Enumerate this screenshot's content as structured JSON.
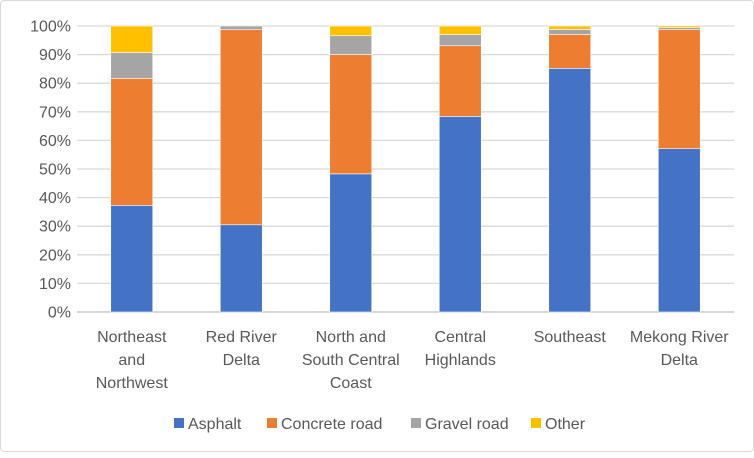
{
  "chart_data": {
    "type": "bar",
    "stacked": "percent",
    "title": "",
    "xlabel": "",
    "ylabel": "",
    "ylim": [
      0,
      100
    ],
    "yticks": [
      "0%",
      "10%",
      "20%",
      "30%",
      "40%",
      "50%",
      "60%",
      "70%",
      "80%",
      "90%",
      "100%"
    ],
    "categories": [
      [
        "Northeast",
        "and",
        "Northwest"
      ],
      [
        "Red River",
        "Delta"
      ],
      [
        "North and",
        "South Central",
        "Coast"
      ],
      [
        "Central",
        "Highlands"
      ],
      [
        "Southeast"
      ],
      [
        "Mekong River",
        "Delta"
      ]
    ],
    "series": [
      {
        "name": "Asphalt",
        "color": "#4472c4",
        "values": [
          37.3,
          30.5,
          48.3,
          68.4,
          85.2,
          57.1
        ]
      },
      {
        "name": "Concrete road",
        "color": "#ed7d31",
        "values": [
          44.4,
          68.2,
          41.7,
          24.7,
          11.8,
          41.6
        ]
      },
      {
        "name": "Gravel road",
        "color": "#a5a5a5",
        "values": [
          9.0,
          1.3,
          6.6,
          3.9,
          1.8,
          0.7
        ]
      },
      {
        "name": "Other",
        "color": "#ffc000",
        "values": [
          9.3,
          0.0,
          3.4,
          3.0,
          1.2,
          0.6
        ]
      }
    ],
    "grid": true,
    "legend": "bottom"
  }
}
